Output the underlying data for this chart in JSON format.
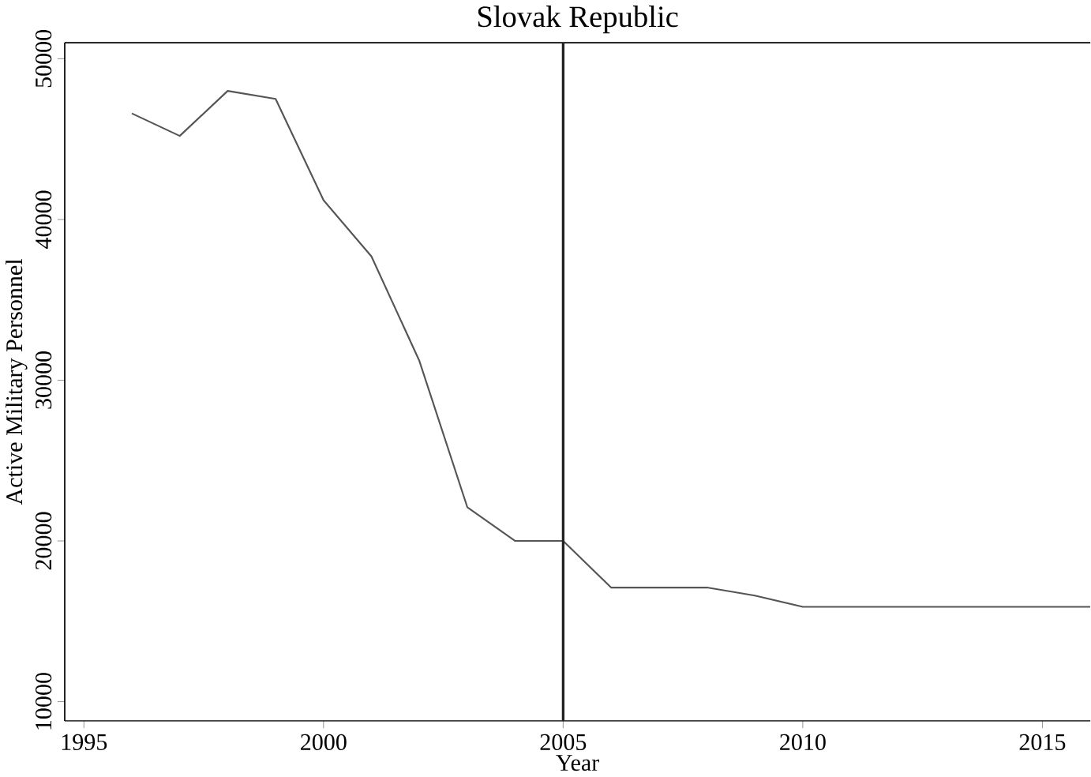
{
  "chart_data": {
    "type": "line",
    "title": "Slovak Republic",
    "xlabel": "Year",
    "ylabel": "Active Military Personnel",
    "x": [
      1996,
      1997,
      1998,
      1999,
      2000,
      2001,
      2002,
      2003,
      2004,
      2005,
      2006,
      2007,
      2008,
      2009,
      2010,
      2011,
      2012,
      2013,
      2014,
      2015,
      2016
    ],
    "series": [
      {
        "color": "#555555",
        "values": [
          46600,
          45200,
          48000,
          47500,
          41200,
          37700,
          31200,
          22100,
          20000,
          20000,
          17100,
          17100,
          17100,
          16600,
          15900,
          15900,
          15900,
          15900,
          15900,
          15900,
          15900
        ]
      }
    ],
    "xlim": [
      1994.6,
      2016
    ],
    "ylim": [
      8800,
      51000
    ],
    "xticks": [
      1995,
      2000,
      2005,
      2010,
      2015
    ],
    "yticks": [
      10000,
      20000,
      30000,
      40000,
      50000
    ],
    "ref_lines": [
      {
        "axis": "x",
        "value": 2005,
        "color": "#222222"
      }
    ],
    "grid": false,
    "marker": "none",
    "line_style": "solid"
  }
}
